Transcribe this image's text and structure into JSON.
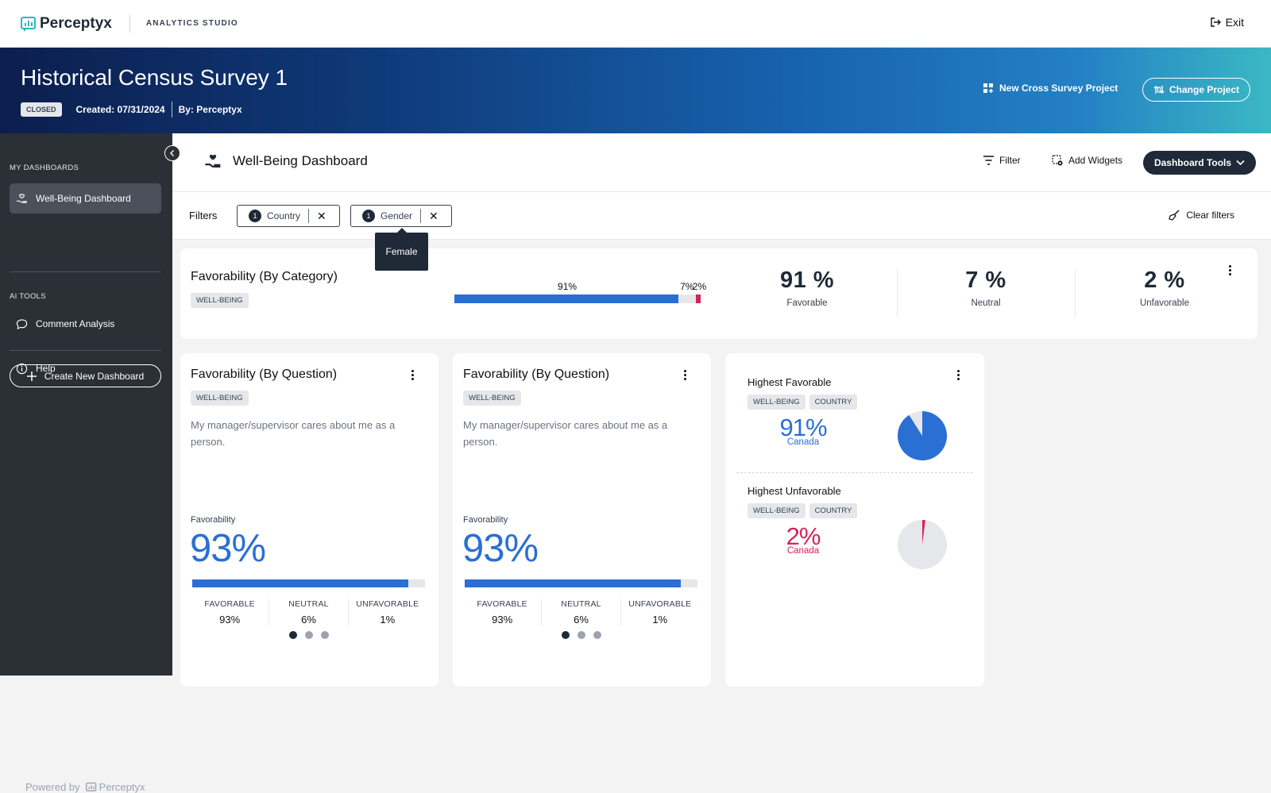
{
  "app": {
    "brand": "Perceptyx",
    "studio": "ANALYTICS STUDIO",
    "exit_label": "Exit"
  },
  "banner": {
    "title": "Historical Census Survey 1",
    "status": "CLOSED",
    "created": "Created: 07/31/2024",
    "by": "By: Perceptyx",
    "new_cross_label": "New Cross Survey Project",
    "change_project_label": "Change Project"
  },
  "sidebar": {
    "my_dashboards_heading": "MY DASHBOARDS",
    "active_dashboard": "Well-Being Dashboard",
    "create_label": "Create New Dashboard",
    "ai_tools_heading": "AI TOOLS",
    "comment_analysis": "Comment Analysis",
    "help": "Help",
    "powered_by": "Powered by",
    "powered_brand": "Perceptyx"
  },
  "header": {
    "title": "Well-Being Dashboard",
    "filter_label": "Filter",
    "add_widgets_label": "Add Widgets",
    "tools_label": "Dashboard Tools"
  },
  "filters": {
    "label": "Filters",
    "chips": [
      {
        "count": "1",
        "name": "Country"
      },
      {
        "count": "1",
        "name": "Gender"
      }
    ],
    "tooltip": "Female",
    "clear_label": "Clear filters"
  },
  "category_card": {
    "title": "Favorability (By Category)",
    "tag": "WELL-BEING",
    "bar": {
      "favorable": 91,
      "neutral": 7,
      "unfavorable": 2,
      "fav_label": "91%",
      "neu_label": "7%",
      "unf_label": "2%"
    },
    "stats": [
      {
        "value": "91 %",
        "label": "Favorable"
      },
      {
        "value": "7 %",
        "label": "Neutral"
      },
      {
        "value": "2 %",
        "label": "Unfavorable"
      }
    ]
  },
  "question_cards": [
    {
      "title": "Favorability (By Question)",
      "tag": "WELL-BEING",
      "question": "My manager/supervisor cares about me as a person.",
      "fav_heading": "Favorability",
      "big_pct": "93%",
      "fill": 93,
      "fav_h": "FAVORABLE",
      "fav_v": "93%",
      "neu_h": "NEUTRAL",
      "neu_v": "6%",
      "unf_h": "UNFAVORABLE",
      "unf_v": "1%"
    },
    {
      "title": "Favorability (By Question)",
      "tag": "WELL-BEING",
      "question": "My manager/supervisor cares about me as a person.",
      "fav_heading": "Favorability",
      "big_pct": "93%",
      "fill": 93,
      "fav_h": "FAVORABLE",
      "fav_v": "93%",
      "neu_h": "NEUTRAL",
      "neu_v": "6%",
      "unf_h": "UNFAVORABLE",
      "unf_v": "1%"
    }
  ],
  "highlight_card": {
    "highest_fav": {
      "title": "Highest Favorable",
      "tags": [
        "WELL-BEING",
        "COUNTRY"
      ],
      "pct": "91%",
      "country": "Canada",
      "value": 91
    },
    "highest_unfav": {
      "title": "Highest Unfavorable",
      "tags": [
        "WELL-BEING",
        "COUNTRY"
      ],
      "pct": "2%",
      "country": "Canada",
      "value": 2
    }
  },
  "colors": {
    "favorable": "#2a6fd4",
    "neutral": "#e5e7eb",
    "unfavorable": "#d6245a"
  }
}
